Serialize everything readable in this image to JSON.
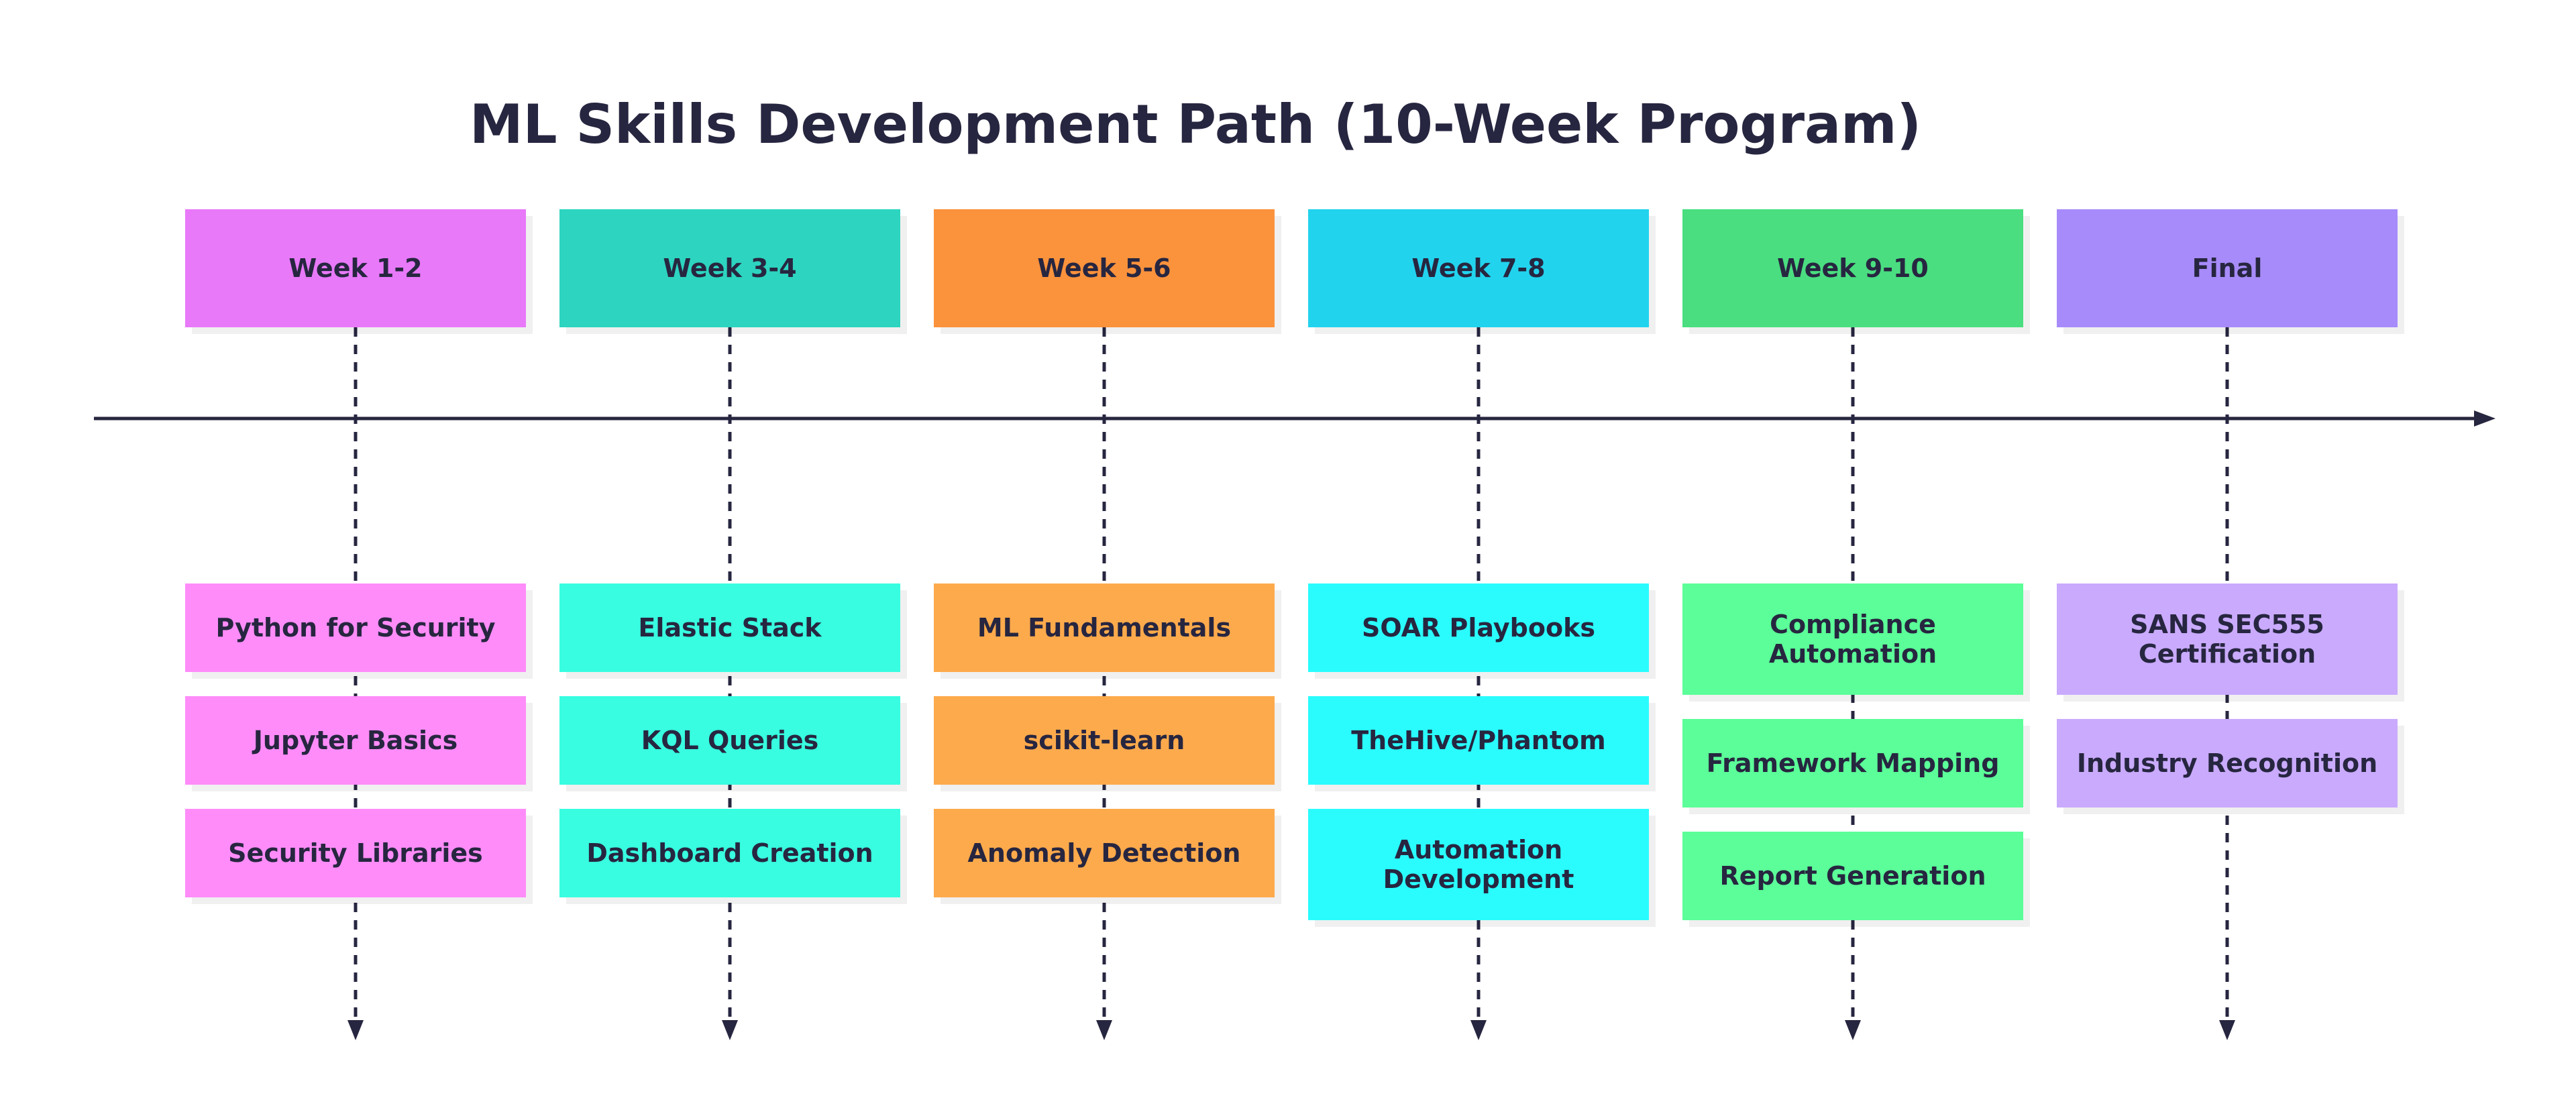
{
  "title": "ML Skills Development Path (10-Week Program)",
  "columns": [
    {
      "week": "Week 1-2",
      "header_color": "#e879f9",
      "item_color": "#ff8cf9",
      "items": [
        "Python for Security",
        "Jupyter Basics",
        "Security Libraries"
      ]
    },
    {
      "week": "Week 3-4",
      "header_color": "#2dd4bf",
      "item_color": "#38fde0",
      "items": [
        "Elastic Stack",
        "KQL Queries",
        "Dashboard Creation"
      ]
    },
    {
      "week": "Week 5-6",
      "header_color": "#fb923c",
      "item_color": "#fdaa4c",
      "items": [
        "ML Fundamentals",
        "scikit-learn",
        "Anomaly Detection"
      ]
    },
    {
      "week": "Week 7-8",
      "header_color": "#22d3ee",
      "item_color": "#2afcfe",
      "items": [
        "SOAR Playbooks",
        "TheHive/Phantom",
        "Automation Development"
      ]
    },
    {
      "week": "Week 9-10",
      "header_color": "#4ade80",
      "item_color": "#5bfe98",
      "items": [
        "Compliance Automation",
        "Framework Mapping",
        "Report Generation"
      ]
    },
    {
      "week": "Final",
      "header_color": "#a78bfa",
      "item_color": "#c9aafd",
      "items": [
        "SANS SEC555 Certification",
        "Industry Recognition"
      ]
    }
  ],
  "line_color": "#272640"
}
